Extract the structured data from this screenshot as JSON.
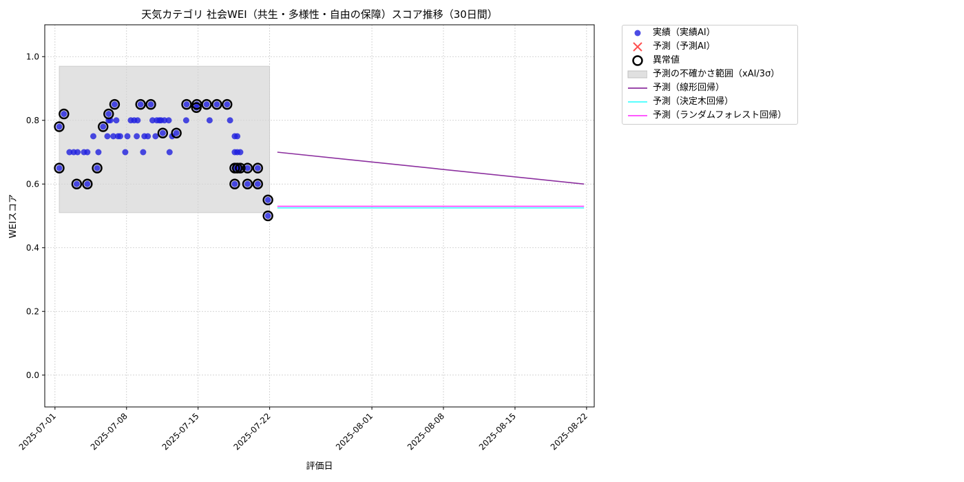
{
  "chart_data": {
    "type": "scatter",
    "title": "天気カテゴリ 社会WEI（共生・多様性・自由の保障）スコア推移（30日間）",
    "xlabel": "評価日",
    "ylabel": "WEIスコア",
    "xlim": [
      "2025-06-30T00:00",
      "2025-08-22T18:00"
    ],
    "ylim": [
      -0.1,
      1.1
    ],
    "yticks": [
      0.0,
      0.2,
      0.4,
      0.6,
      0.8,
      1.0
    ],
    "ytick_labels": [
      "0.0",
      "0.2",
      "0.4",
      "0.6",
      "0.8",
      "1.0"
    ],
    "xticks": [
      "2025-07-01",
      "2025-07-08",
      "2025-07-15",
      "2025-07-22",
      "2025-08-01",
      "2025-08-08",
      "2025-08-15",
      "2025-08-22"
    ],
    "grid": true,
    "legend_position": "outside-top-right",
    "colors": {
      "actual": "#1f1fdf",
      "predicted": "#ff3030",
      "anomaly": "#000000",
      "band": "#d3d3d3",
      "linear": "#8b2e9e",
      "tree": "#40ffff",
      "forest": "#ff40ff"
    },
    "series": [
      {
        "name": "実績（実績AI）",
        "kind": "scatter",
        "points": [
          [
            "2025-07-01T10:00",
            0.78
          ],
          [
            "2025-07-01T10:00",
            0.65
          ],
          [
            "2025-07-01T21:00",
            0.82
          ],
          [
            "2025-07-02T10:00",
            0.7
          ],
          [
            "2025-07-02T20:00",
            0.7
          ],
          [
            "2025-07-03T03:00",
            0.6
          ],
          [
            "2025-07-03T05:00",
            0.7
          ],
          [
            "2025-07-03T20:00",
            0.7
          ],
          [
            "2025-07-04T04:00",
            0.6
          ],
          [
            "2025-07-04T04:00",
            0.7
          ],
          [
            "2025-07-04T18:00",
            0.75
          ],
          [
            "2025-07-05T03:00",
            0.65
          ],
          [
            "2025-07-05T06:00",
            0.7
          ],
          [
            "2025-07-05T17:00",
            0.78
          ],
          [
            "2025-07-06T03:00",
            0.75
          ],
          [
            "2025-07-06T06:00",
            0.82
          ],
          [
            "2025-07-06T06:00",
            0.8
          ],
          [
            "2025-07-06T10:00",
            0.8
          ],
          [
            "2025-07-06T17:00",
            0.75
          ],
          [
            "2025-07-06T20:00",
            0.85
          ],
          [
            "2025-07-07T00:00",
            0.8
          ],
          [
            "2025-07-07T04:00",
            0.75
          ],
          [
            "2025-07-07T09:00",
            0.75
          ],
          [
            "2025-07-07T21:00",
            0.7
          ],
          [
            "2025-07-08T02:00",
            0.75
          ],
          [
            "2025-07-08T10:00",
            0.8
          ],
          [
            "2025-07-08T18:00",
            0.8
          ],
          [
            "2025-07-09T00:00",
            0.75
          ],
          [
            "2025-07-09T02:00",
            0.8
          ],
          [
            "2025-07-09T09:00",
            0.85
          ],
          [
            "2025-07-09T15:00",
            0.7
          ],
          [
            "2025-07-09T18:00",
            0.75
          ],
          [
            "2025-07-10T02:00",
            0.75
          ],
          [
            "2025-07-10T09:00",
            0.85
          ],
          [
            "2025-07-10T13:00",
            0.8
          ],
          [
            "2025-07-10T20:00",
            0.75
          ],
          [
            "2025-07-10T23:00",
            0.8
          ],
          [
            "2025-07-11T05:00",
            0.8
          ],
          [
            "2025-07-11T09:00",
            0.8
          ],
          [
            "2025-07-11T13:00",
            0.76
          ],
          [
            "2025-07-11T17:00",
            0.8
          ],
          [
            "2025-07-12T03:00",
            0.8
          ],
          [
            "2025-07-12T05:00",
            0.7
          ],
          [
            "2025-07-12T11:00",
            0.75
          ],
          [
            "2025-07-12T21:00",
            0.76
          ],
          [
            "2025-07-13T20:00",
            0.8
          ],
          [
            "2025-07-13T21:00",
            0.85
          ],
          [
            "2025-07-14T20:00",
            0.84
          ],
          [
            "2025-07-14T21:00",
            0.85
          ],
          [
            "2025-07-15T20:00",
            0.85
          ],
          [
            "2025-07-16T03:00",
            0.8
          ],
          [
            "2025-07-16T20:00",
            0.85
          ],
          [
            "2025-07-17T20:00",
            0.85
          ],
          [
            "2025-07-18T03:00",
            0.8
          ],
          [
            "2025-07-18T14:00",
            0.75
          ],
          [
            "2025-07-18T14:00",
            0.7
          ],
          [
            "2025-07-18T14:00",
            0.65
          ],
          [
            "2025-07-18T14:00",
            0.6
          ],
          [
            "2025-07-18T20:00",
            0.75
          ],
          [
            "2025-07-18T20:00",
            0.7
          ],
          [
            "2025-07-18T20:00",
            0.65
          ],
          [
            "2025-07-19T03:00",
            0.7
          ],
          [
            "2025-07-19T03:00",
            0.65
          ],
          [
            "2025-07-19T20:00",
            0.65
          ],
          [
            "2025-07-19T20:00",
            0.6
          ],
          [
            "2025-07-20T20:00",
            0.65
          ],
          [
            "2025-07-20T20:00",
            0.6
          ],
          [
            "2025-07-21T20:00",
            0.55
          ],
          [
            "2025-07-21T20:00",
            0.5
          ]
        ]
      },
      {
        "name": "予測（予測AI）",
        "kind": "scatter",
        "points": []
      },
      {
        "name": "異常値",
        "kind": "scatter",
        "points": [
          [
            "2025-07-01T10:00",
            0.78
          ],
          [
            "2025-07-01T10:00",
            0.65
          ],
          [
            "2025-07-01T21:00",
            0.82
          ],
          [
            "2025-07-03T03:00",
            0.6
          ],
          [
            "2025-07-04T04:00",
            0.6
          ],
          [
            "2025-07-05T03:00",
            0.65
          ],
          [
            "2025-07-05T17:00",
            0.78
          ],
          [
            "2025-07-06T06:00",
            0.82
          ],
          [
            "2025-07-06T20:00",
            0.85
          ],
          [
            "2025-07-09T09:00",
            0.85
          ],
          [
            "2025-07-10T09:00",
            0.85
          ],
          [
            "2025-07-11T13:00",
            0.76
          ],
          [
            "2025-07-12T21:00",
            0.76
          ],
          [
            "2025-07-13T21:00",
            0.85
          ],
          [
            "2025-07-14T20:00",
            0.84
          ],
          [
            "2025-07-14T21:00",
            0.85
          ],
          [
            "2025-07-15T20:00",
            0.85
          ],
          [
            "2025-07-16T20:00",
            0.85
          ],
          [
            "2025-07-17T20:00",
            0.85
          ],
          [
            "2025-07-18T14:00",
            0.65
          ],
          [
            "2025-07-18T14:00",
            0.6
          ],
          [
            "2025-07-18T20:00",
            0.65
          ],
          [
            "2025-07-19T03:00",
            0.65
          ],
          [
            "2025-07-19T20:00",
            0.65
          ],
          [
            "2025-07-19T20:00",
            0.6
          ],
          [
            "2025-07-20T20:00",
            0.65
          ],
          [
            "2025-07-20T20:00",
            0.6
          ],
          [
            "2025-07-21T20:00",
            0.55
          ],
          [
            "2025-07-21T20:00",
            0.5
          ]
        ]
      },
      {
        "name": "予測の不確かさ範囲（xAI/3σ）",
        "kind": "band",
        "x_start": "2025-07-01T10:00",
        "x_end": "2025-07-22T00:00",
        "y_low": 0.51,
        "y_high": 0.97
      },
      {
        "name": "予測（線形回帰）",
        "kind": "line",
        "points": [
          [
            "2025-07-22T18:00",
            0.7
          ],
          [
            "2025-08-21T18:00",
            0.6
          ]
        ]
      },
      {
        "name": "予測（決定木回帰）",
        "kind": "line",
        "points": [
          [
            "2025-07-22T18:00",
            0.525
          ],
          [
            "2025-08-21T18:00",
            0.525
          ]
        ]
      },
      {
        "name": "予測（ランダムフォレスト回帰）",
        "kind": "line",
        "points": [
          [
            "2025-07-22T18:00",
            0.53
          ],
          [
            "2025-08-21T18:00",
            0.53
          ]
        ]
      }
    ]
  }
}
